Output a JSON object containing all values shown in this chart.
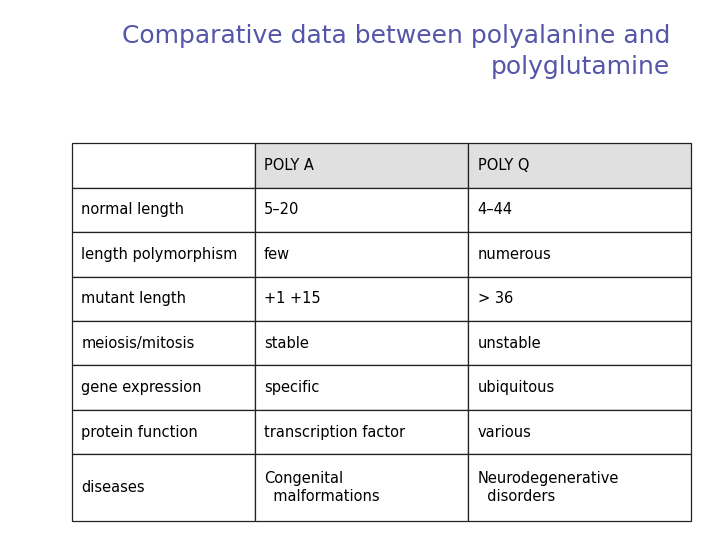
{
  "title_line1": "Comparative data between polyalanine and",
  "title_line2": "polyglutamine",
  "title_color": "#5555aa",
  "title_fontsize": 18,
  "background_color": "#ffffff",
  "table_col_headers": [
    "",
    "POLY A",
    "POLY Q"
  ],
  "table_rows": [
    [
      "normal length",
      "5–20",
      "4–44"
    ],
    [
      "length polymorphism",
      "few",
      "numerous"
    ],
    [
      "mutant length",
      "+1 +15",
      "> 36"
    ],
    [
      "meiosis/mitosis",
      "stable",
      "unstable"
    ],
    [
      "gene expression",
      "specific",
      "ubiquitous"
    ],
    [
      "protein function",
      "transcription factor",
      "various"
    ],
    [
      "diseases",
      "Congenital\n  malformations",
      "Neurodegenerative\n  disorders"
    ]
  ],
  "header_bg_color": "#e0e0e0",
  "cell_bg_color": "#ffffff",
  "border_color": "#222222",
  "text_color": "#000000",
  "font_family": "DejaVu Sans",
  "cell_fontsize": 10.5
}
